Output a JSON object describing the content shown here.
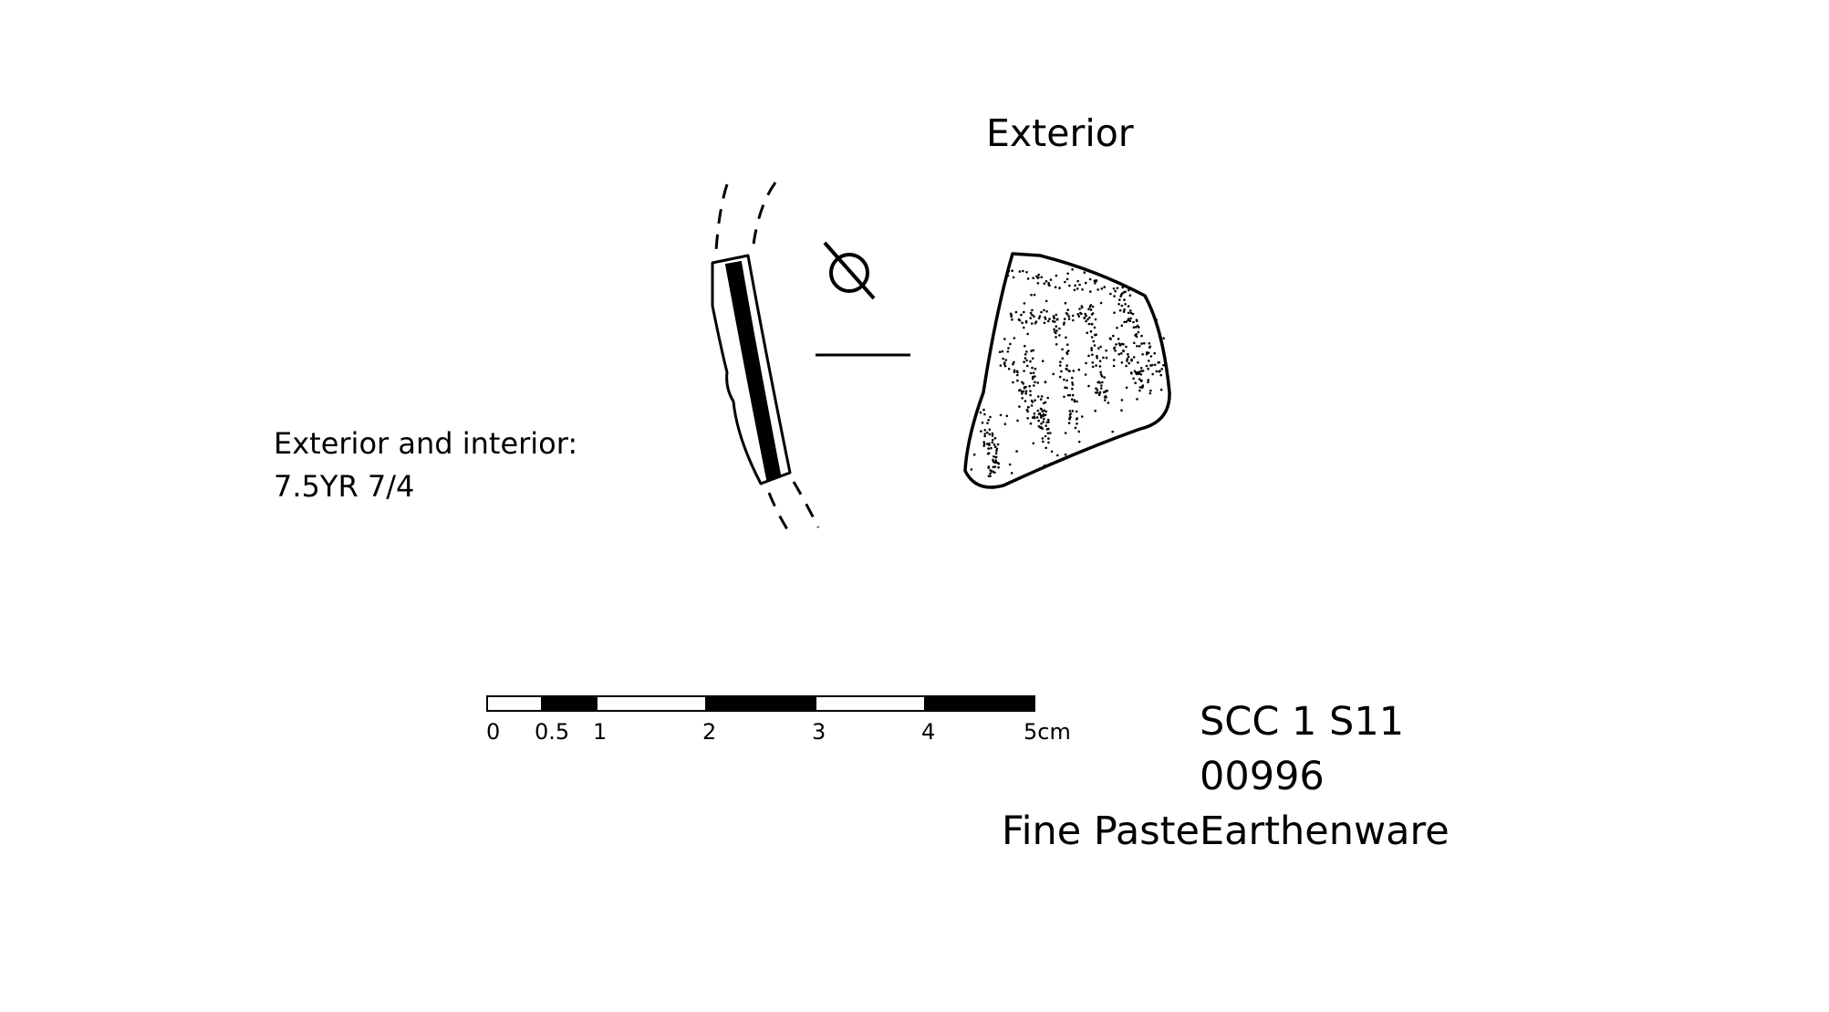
{
  "labels": {
    "view_heading": "Exterior",
    "color_note_label": "Exterior and interior:",
    "color_note_value": "7.5YR 7/4",
    "site_code": "SCC 1 S11",
    "catalog_number": "00996",
    "ware_type_part1": "Fine Paste",
    "ware_type_part2": "Earthenware"
  },
  "scale_bar": {
    "unit": "cm",
    "ticks": [
      "0",
      "0.5",
      "1",
      "2",
      "3",
      "4",
      "5cm"
    ],
    "segments": [
      {
        "from": 0,
        "to": 0.5,
        "fill": "white"
      },
      {
        "from": 0.5,
        "to": 1,
        "fill": "black"
      },
      {
        "from": 1,
        "to": 2,
        "fill": "white"
      },
      {
        "from": 2,
        "to": 3,
        "fill": "black"
      },
      {
        "from": 3,
        "to": 4,
        "fill": "white"
      },
      {
        "from": 4,
        "to": 5,
        "fill": "black"
      }
    ]
  },
  "symbols": {
    "diameter_symbol": "diameter-symbol-icon"
  },
  "colors": {
    "ink": "#000000",
    "background": "#ffffff"
  }
}
